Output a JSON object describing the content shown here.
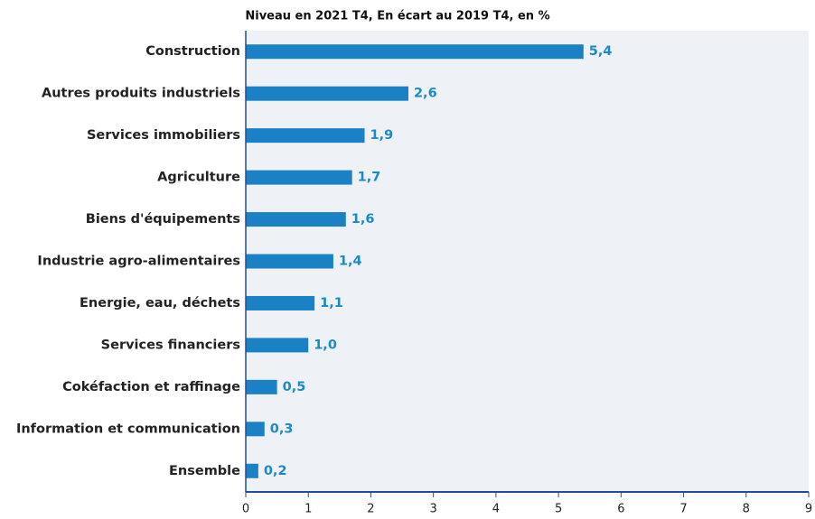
{
  "chart_data": {
    "type": "bar",
    "orientation": "horizontal",
    "title": "Niveau en 2021 T4, En écart au 2019 T4, en %",
    "categories": [
      "Construction",
      "Autres produits industriels",
      "Services immobiliers",
      "Agriculture",
      "Biens d'équipements",
      "Industrie agro-alimentaires",
      "Energie, eau, déchets",
      "Services financiers",
      "Cokéfaction et raffinage",
      "Information et communication",
      "Ensemble"
    ],
    "values": [
      5.4,
      2.6,
      1.9,
      1.7,
      1.6,
      1.4,
      1.1,
      1.0,
      0.5,
      0.3,
      0.2
    ],
    "value_labels": [
      "5,4",
      "2,6",
      "1,9",
      "1,7",
      "1,6",
      "1,4",
      "1,1",
      "1,0",
      "0,5",
      "0,3",
      "0,2"
    ],
    "color": "#1a82c4",
    "xlim": [
      0,
      9
    ],
    "xticks": [
      0,
      1,
      2,
      3,
      4,
      5,
      6,
      7,
      8,
      9
    ]
  }
}
